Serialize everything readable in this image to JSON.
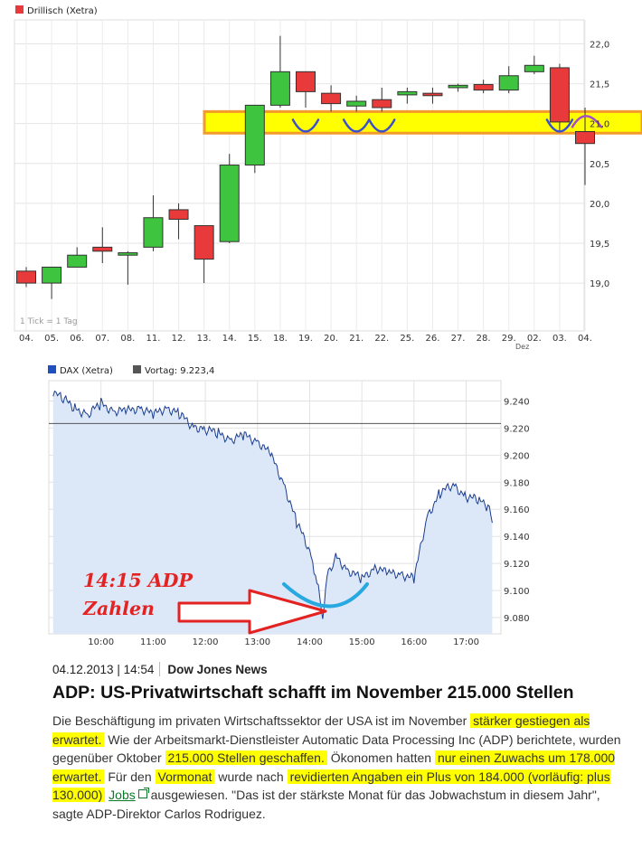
{
  "chart1": {
    "legend_label": "Drillisch (Xetra)",
    "tick_note": "1 Tick = 1 Tag",
    "colors": {
      "up": "#3ec43e",
      "down": "#e83a3a",
      "band": "#ffff00",
      "band_border": "#f29a2a",
      "arrow_blue": "#3b4fd0",
      "arrow_purple": "#a64dc8"
    },
    "y_tick_labels": [
      "22,0",
      "21,5",
      "21,0",
      "20,5",
      "20,0",
      "19,5",
      "19,0"
    ],
    "date_labels": [
      "04.",
      "05.",
      "06.",
      "07.",
      "08.",
      "11.",
      "12.",
      "13.",
      "14.",
      "15.",
      "18.",
      "19.",
      "20.",
      "21.",
      "22.",
      "25.",
      "26.",
      "27.",
      "28.",
      "29.",
      "02.",
      "03.",
      "04."
    ],
    "month_label": "Dez"
  },
  "chart2": {
    "legend_label": "DAX (Xetra)",
    "legend_vortag": "Vortag: 9.223,4",
    "y_tick_labels": [
      "9.240",
      "9.220",
      "9.200",
      "9.180",
      "9.160",
      "9.140",
      "9.120",
      "9.100",
      "9.080"
    ],
    "x_tick_labels": [
      "10:00",
      "11:00",
      "12:00",
      "13:00",
      "14:00",
      "15:00",
      "16:00",
      "17:00"
    ],
    "annotation_line1": "14:15 ADP",
    "annotation_line2": "Zahlen",
    "colors": {
      "line": "#1a3d8f",
      "fill": "#dce7f8",
      "arrow": "#e32222",
      "curve": "#28a8e0"
    }
  },
  "news": {
    "date": "04.12.2013 | 14:54",
    "source": "Dow Jones News",
    "headline": "ADP: US-Privatwirtschaft schafft im November 215.000 Stellen",
    "p1": "Die Beschäftigung im privaten Wirtschaftssektor der USA ist im November ",
    "h1": "stärker gestiegen als erwartet.",
    "p2": " Wie der Arbeitsmarkt-Dienstleister Automatic Data Processing Inc (ADP) berichtete, wurden gegenüber Oktober ",
    "h2": "215.000 Stellen geschaffen.",
    "p3": " Ökonomen hatten ",
    "h3": "nur einen Zuwachs um 178.000 erwartet.",
    "p4": " Für den ",
    "h4": "Vormonat",
    "p5": " wurde nach ",
    "h5": "revidierten Angaben ein Plus von 184.000 (vorläufig: plus 130.000)",
    "link": "Jobs",
    "p6": " ausgewiesen.  \"Das ist der stärkste Monat für das Jobwachstum in diesem Jahr\", sagte ADP-Direktor Carlos Rodriguez."
  },
  "chart_data": [
    {
      "type": "candlestick",
      "title": "Drillisch (Xetra)",
      "x": [
        "04.",
        "05.",
        "06.",
        "07.",
        "08.",
        "11.",
        "12.",
        "13.",
        "14.",
        "15.",
        "18.",
        "19.",
        "20.",
        "21.",
        "22.",
        "25.",
        "26.",
        "27.",
        "28.",
        "29.",
        "02.",
        "03.",
        "04."
      ],
      "ylim": [
        18.4,
        22.3
      ],
      "highlight_band": [
        20.88,
        21.15
      ],
      "candles": [
        {
          "o": 19.15,
          "h": 19.2,
          "c": 19.0,
          "l": 18.95
        },
        {
          "o": 19.0,
          "h": 19.2,
          "c": 19.2,
          "l": 18.8
        },
        {
          "o": 19.2,
          "h": 19.45,
          "c": 19.35,
          "l": 19.2
        },
        {
          "o": 19.45,
          "h": 19.7,
          "c": 19.4,
          "l": 19.25
        },
        {
          "o": 19.35,
          "h": 19.4,
          "c": 19.38,
          "l": 18.98
        },
        {
          "o": 19.45,
          "h": 20.1,
          "c": 19.82,
          "l": 19.4
        },
        {
          "o": 19.92,
          "h": 20.0,
          "c": 19.8,
          "l": 19.55
        },
        {
          "o": 19.72,
          "h": 19.72,
          "c": 19.3,
          "l": 19.0
        },
        {
          "o": 19.52,
          "h": 20.62,
          "c": 20.48,
          "l": 19.5
        },
        {
          "o": 20.48,
          "h": 21.23,
          "c": 21.23,
          "l": 20.38
        },
        {
          "o": 21.23,
          "h": 22.1,
          "c": 21.65,
          "l": 21.2
        },
        {
          "o": 21.65,
          "h": 21.65,
          "c": 21.4,
          "l": 21.2
        },
        {
          "o": 21.38,
          "h": 21.48,
          "c": 21.25,
          "l": 21.15
        },
        {
          "o": 21.22,
          "h": 21.35,
          "c": 21.28,
          "l": 21.15
        },
        {
          "o": 21.3,
          "h": 21.45,
          "c": 21.2,
          "l": 21.15
        },
        {
          "o": 21.36,
          "h": 21.45,
          "c": 21.4,
          "l": 21.25
        },
        {
          "o": 21.38,
          "h": 21.45,
          "c": 21.35,
          "l": 21.25
        },
        {
          "o": 21.45,
          "h": 21.5,
          "c": 21.48,
          "l": 21.4
        },
        {
          "o": 21.49,
          "h": 21.55,
          "c": 21.42,
          "l": 21.38
        },
        {
          "o": 21.42,
          "h": 21.72,
          "c": 21.6,
          "l": 21.38
        },
        {
          "o": 21.65,
          "h": 21.85,
          "c": 21.73,
          "l": 21.62
        },
        {
          "o": 21.7,
          "h": 21.75,
          "c": 21.02,
          "l": 20.9
        },
        {
          "o": 20.9,
          "h": 21.2,
          "c": 20.75,
          "l": 20.23
        }
      ]
    },
    {
      "type": "area",
      "title": "DAX (Xetra)",
      "reference_line": 9223.4,
      "ylim": [
        9068,
        9255
      ],
      "x": [
        "09:05",
        "09:15",
        "09:30",
        "09:45",
        "10:00",
        "10:15",
        "10:30",
        "10:45",
        "11:00",
        "11:15",
        "11:30",
        "11:45",
        "12:00",
        "12:15",
        "12:30",
        "12:45",
        "13:00",
        "13:15",
        "13:30",
        "13:45",
        "14:00",
        "14:05",
        "14:10",
        "14:15",
        "14:20",
        "14:30",
        "14:45",
        "15:00",
        "15:15",
        "15:30",
        "15:45",
        "16:00",
        "16:15",
        "16:30",
        "16:45",
        "17:00",
        "17:15",
        "17:25",
        "17:30"
      ],
      "values": [
        9246,
        9242,
        9235,
        9230,
        9238,
        9233,
        9232,
        9236,
        9229,
        9236,
        9230,
        9222,
        9219,
        9216,
        9212,
        9214,
        9211,
        9200,
        9180,
        9150,
        9130,
        9115,
        9100,
        9082,
        9110,
        9125,
        9115,
        9108,
        9118,
        9112,
        9113,
        9108,
        9155,
        9172,
        9178,
        9170,
        9166,
        9162,
        9150
      ]
    }
  ]
}
